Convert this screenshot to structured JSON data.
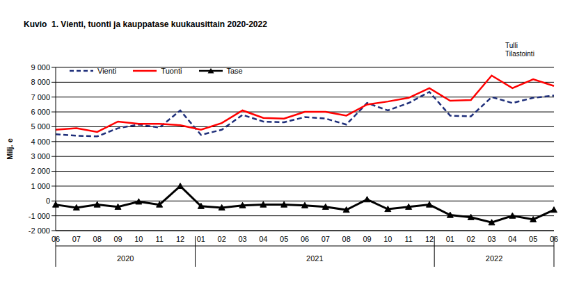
{
  "chart_data": {
    "type": "line",
    "title": "Kuvio  1. Vienti, tuonti ja kauppatase kuukausittain 2020-2022",
    "source": [
      "Tulli",
      "Tilastointi"
    ],
    "y_label": "Milj. e",
    "categories": [
      "06",
      "07",
      "08",
      "09",
      "10",
      "11",
      "12",
      "01",
      "02",
      "03",
      "04",
      "05",
      "06",
      "07",
      "08",
      "09",
      "10",
      "11",
      "12",
      "01",
      "02",
      "03",
      "04",
      "05",
      "06"
    ],
    "x_groups": [
      {
        "label": "2020",
        "count": 7
      },
      {
        "label": "2021",
        "count": 12
      },
      {
        "label": "2022",
        "count": 6
      }
    ],
    "ylim": [
      -2000,
      9000
    ],
    "yticks": [
      {
        "value": -2000,
        "label": "-2 000"
      },
      {
        "value": -1000,
        "label": "-1 000"
      },
      0,
      {
        "value": 1000,
        "label": "1 000"
      },
      {
        "value": 2000,
        "label": "2 000"
      },
      {
        "value": 3000,
        "label": "3 000"
      },
      {
        "value": 4000,
        "label": "4 000"
      },
      {
        "value": 5000,
        "label": "5 000"
      },
      {
        "value": 6000,
        "label": "6 000"
      },
      {
        "value": 7000,
        "label": "7 000"
      },
      {
        "value": 8000,
        "label": "8 000"
      },
      {
        "value": 9000,
        "label": "9 000"
      }
    ],
    "grid": true,
    "legend": "upper left",
    "series": [
      {
        "name": "Vienti",
        "color": "#1f2f7a",
        "line_style": "dashed",
        "marker": "none",
        "values": [
          4500,
          4400,
          4350,
          4900,
          5150,
          4950,
          6100,
          4450,
          4800,
          5800,
          5350,
          5300,
          5650,
          5550,
          5150,
          6600,
          6100,
          6600,
          7350,
          5750,
          5700,
          7000,
          6600,
          6950,
          7100
        ]
      },
      {
        "name": "Tuonti",
        "color": "#ff0000",
        "line_style": "solid",
        "marker": "none",
        "values": [
          4800,
          4900,
          4650,
          5350,
          5200,
          5200,
          5100,
          4800,
          5250,
          6100,
          5600,
          5550,
          6000,
          6000,
          5750,
          6500,
          6700,
          6950,
          7600,
          6750,
          6800,
          8450,
          7600,
          8200,
          7750
        ]
      },
      {
        "name": "Tase",
        "color": "#000000",
        "line_style": "solid",
        "marker": "triangle",
        "values": [
          -250,
          -450,
          -250,
          -400,
          -50,
          -250,
          1000,
          -350,
          -450,
          -300,
          -250,
          -250,
          -300,
          -400,
          -600,
          100,
          -550,
          -400,
          -250,
          -950,
          -1100,
          -1450,
          -1000,
          -1250,
          -600
        ]
      }
    ]
  }
}
